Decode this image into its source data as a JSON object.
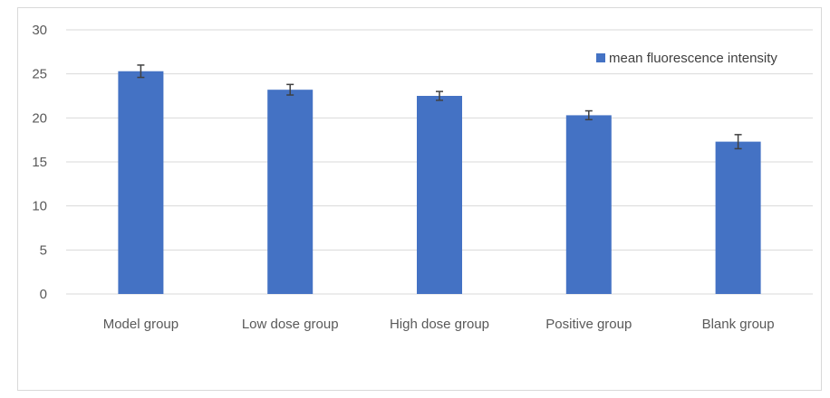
{
  "chart_data": {
    "type": "bar",
    "categories": [
      "Model group",
      "Low dose group",
      "High dose group",
      "Positive group",
      "Blank group"
    ],
    "series": [
      {
        "name": "mean fluorescence intensity",
        "values": [
          25.3,
          23.2,
          22.5,
          20.3,
          17.3
        ],
        "errors": [
          0.7,
          0.6,
          0.5,
          0.5,
          0.8
        ],
        "color": "#4472c4"
      }
    ],
    "ylim": [
      0,
      30
    ],
    "yticks": [
      0,
      5,
      10,
      15,
      20,
      25,
      30
    ],
    "grid": true,
    "legend": "top-right",
    "axis_label_color": "#595959",
    "gridline_color": "#d9d9d9",
    "error_bar_color": "#404040"
  }
}
